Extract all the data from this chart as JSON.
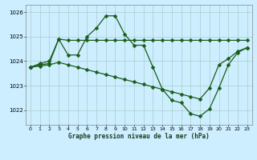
{
  "title": "Graphe pression niveau de la mer (hPa)",
  "background_color": "#cceeff",
  "grid_color": "#aacccc",
  "line_color": "#1a5c1a",
  "marker": "D",
  "markersize": 2.5,
  "linewidth": 0.9,
  "xlim": [
    -0.5,
    23.5
  ],
  "ylim": [
    1021.4,
    1026.3
  ],
  "yticks": [
    1022,
    1023,
    1024,
    1025,
    1026
  ],
  "xticks": [
    0,
    1,
    2,
    3,
    4,
    5,
    6,
    7,
    8,
    9,
    10,
    11,
    12,
    13,
    14,
    15,
    16,
    17,
    18,
    19,
    20,
    21,
    22,
    23
  ],
  "series": [
    {
      "x": [
        0,
        1,
        2,
        3,
        4,
        5,
        6,
        7,
        8,
        9,
        10,
        11,
        12,
        13,
        14,
        15,
        16,
        17,
        18,
        19,
        20,
        21,
        22,
        23
      ],
      "y": [
        1023.75,
        1023.85,
        1023.9,
        1024.9,
        1024.85,
        1024.85,
        1024.85,
        1024.85,
        1024.85,
        1024.85,
        1024.85,
        1024.85,
        1024.85,
        1024.85,
        1024.85,
        1024.85,
        1024.85,
        1024.85,
        1024.85,
        1024.85,
        1024.85,
        1024.85,
        1024.85,
        1024.85
      ]
    },
    {
      "x": [
        0,
        1,
        2,
        3,
        4,
        5,
        6,
        7,
        8,
        9,
        10,
        11,
        12,
        13,
        14,
        15,
        16,
        17,
        18,
        19,
        20,
        21,
        22,
        23
      ],
      "y": [
        1023.75,
        1023.9,
        1024.0,
        1024.9,
        1024.25,
        1024.25,
        1025.0,
        1025.35,
        1025.85,
        1025.85,
        1025.1,
        1024.65,
        1024.65,
        1023.75,
        1022.85,
        1022.4,
        1022.3,
        1021.85,
        1021.75,
        1022.05,
        1022.9,
        1023.85,
        1024.35,
        1024.55
      ]
    },
    {
      "x": [
        0,
        1,
        2,
        3,
        4,
        5,
        6,
        7,
        8,
        9,
        10,
        11,
        12,
        13,
        14,
        15,
        16,
        17,
        18,
        19,
        20,
        21,
        22,
        23
      ],
      "y": [
        1023.75,
        1023.8,
        1023.85,
        1023.95,
        1023.85,
        1023.75,
        1023.65,
        1023.55,
        1023.45,
        1023.35,
        1023.25,
        1023.15,
        1023.05,
        1022.95,
        1022.85,
        1022.75,
        1022.65,
        1022.55,
        1022.45,
        1022.9,
        1023.85,
        1024.1,
        1024.4,
        1024.55
      ]
    }
  ]
}
